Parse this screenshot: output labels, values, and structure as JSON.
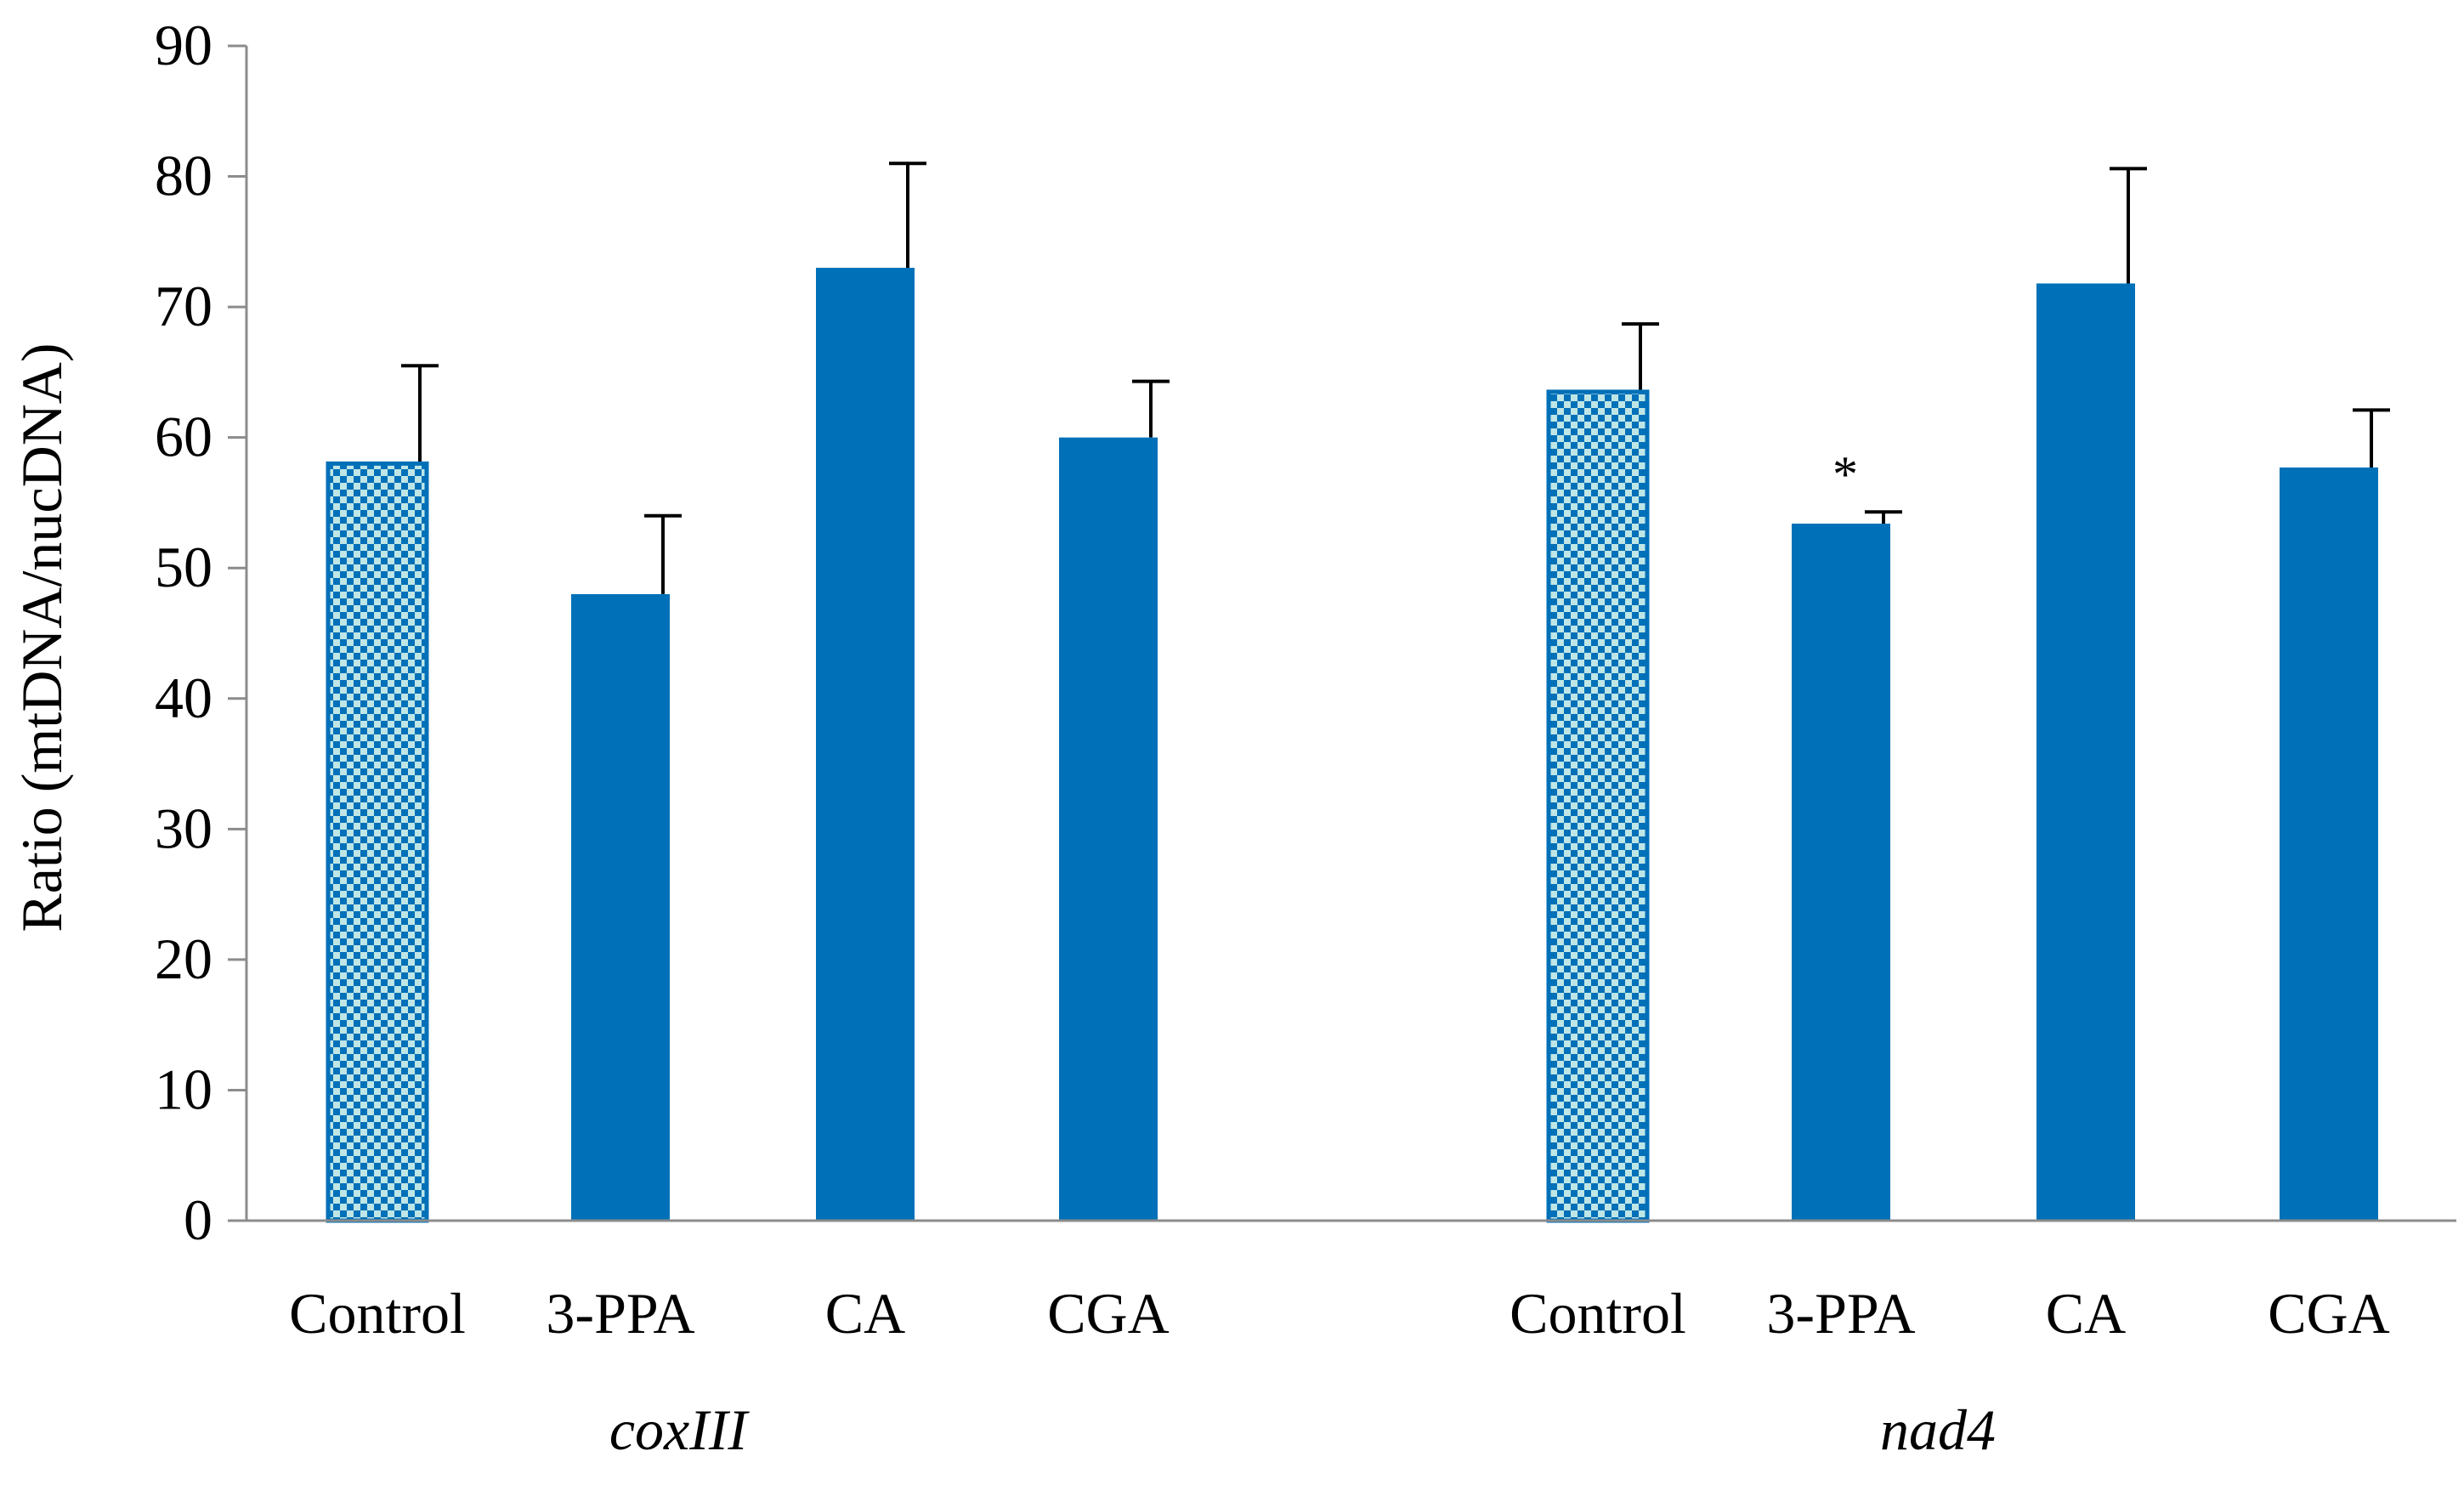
{
  "chart_data": {
    "type": "bar",
    "title": "",
    "xlabel": "",
    "ylabel": "Ratio (mtDNA/nucDNA)",
    "ylim": [
      0,
      90
    ],
    "yticks": [
      0,
      10,
      20,
      30,
      40,
      50,
      60,
      70,
      80,
      90
    ],
    "grid": false,
    "legend": "none",
    "colors": {
      "bar": "#0070b8",
      "control_fill_a": "#0070b8",
      "control_fill_b": "#bfe6e6",
      "error_bar": "#000000",
      "axis": "#8c8c8c"
    },
    "groups": [
      {
        "name": "coxIII",
        "bars": [
          {
            "category": "Control",
            "value": 58,
            "error": 7.5,
            "pattern": "checker",
            "annotation": ""
          },
          {
            "category": "3-PPA",
            "value": 48,
            "error": 6,
            "pattern": "solid",
            "annotation": ""
          },
          {
            "category": "CA",
            "value": 73,
            "error": 8,
            "pattern": "solid",
            "annotation": ""
          },
          {
            "category": "CGA",
            "value": 60,
            "error": 4.3,
            "pattern": "solid",
            "annotation": ""
          }
        ]
      },
      {
        "name": "nad4",
        "bars": [
          {
            "category": "Control",
            "value": 63.5,
            "error": 5.2,
            "pattern": "checker",
            "annotation": ""
          },
          {
            "category": "3-PPA",
            "value": 53.4,
            "error": 0.9,
            "pattern": "solid",
            "annotation": "*"
          },
          {
            "category": "CA",
            "value": 71.8,
            "error": 8.8,
            "pattern": "solid",
            "annotation": ""
          },
          {
            "category": "CGA",
            "value": 57.7,
            "error": 4.4,
            "pattern": "solid",
            "annotation": ""
          }
        ]
      }
    ]
  }
}
